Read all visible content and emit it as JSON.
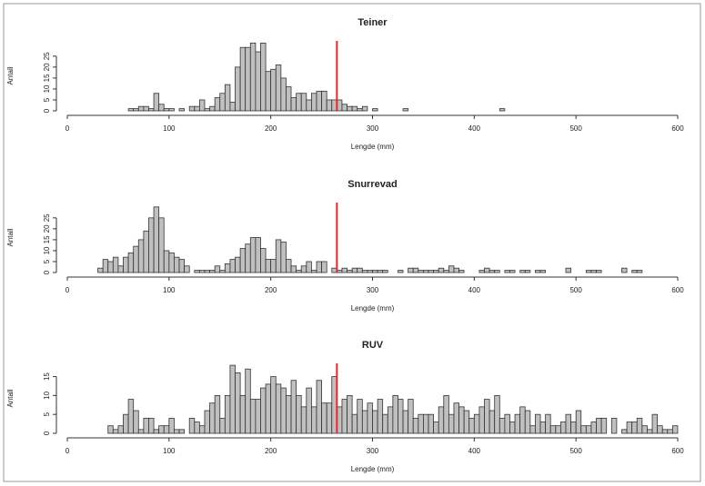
{
  "chart_data": [
    {
      "type": "histogram",
      "title": "Teiner",
      "xlabel": "Lengde (mm)",
      "ylabel": "Antall",
      "bins": [
        30,
        35,
        40,
        45,
        50,
        55,
        60,
        65,
        70,
        75,
        80,
        85,
        90,
        95,
        100,
        105,
        110,
        115,
        120,
        125,
        130,
        135,
        140,
        145,
        150,
        155,
        160,
        165,
        170,
        175,
        180,
        185,
        190,
        195,
        200,
        205,
        210,
        215,
        220,
        225,
        230,
        235,
        240,
        245,
        250,
        255,
        260,
        265,
        270,
        275,
        280,
        285,
        290,
        295,
        300,
        305,
        310,
        315,
        320,
        325,
        330,
        335,
        340,
        345,
        350,
        355,
        360,
        365,
        370,
        375,
        380,
        385,
        390,
        395,
        400,
        405,
        410,
        415,
        420,
        425,
        430,
        435,
        440,
        445,
        450,
        455,
        460,
        465,
        470,
        475,
        480,
        485,
        490,
        495,
        500,
        505,
        510,
        515,
        520,
        525,
        530,
        535,
        540,
        545,
        550,
        555,
        560,
        565,
        570,
        575,
        580,
        585,
        590,
        595,
        600
      ],
      "counts": [
        0,
        0,
        0,
        0,
        0,
        0,
        1,
        1,
        2,
        2,
        1,
        8,
        3,
        1,
        1,
        0,
        1,
        0,
        2,
        2,
        5,
        1,
        2,
        6,
        8,
        12,
        4,
        20,
        29,
        29,
        31,
        27,
        31,
        18,
        19,
        21,
        15,
        11,
        6,
        8,
        8,
        5,
        8,
        9,
        9,
        5,
        5,
        5,
        3,
        2,
        2,
        1,
        2,
        0,
        1,
        0,
        0,
        0,
        0,
        0,
        1,
        0,
        0,
        0,
        0,
        0,
        0,
        0,
        0,
        0,
        0,
        0,
        0,
        0,
        0,
        0,
        0,
        0,
        0,
        1,
        0,
        0,
        0,
        0,
        0,
        0,
        0,
        0,
        0,
        0,
        0,
        0,
        0,
        0,
        0,
        0,
        0,
        0,
        0,
        0,
        0,
        0,
        0,
        0,
        0,
        0,
        0,
        0,
        0,
        0,
        0,
        0,
        0,
        0
      ],
      "color": "#c0c0c0",
      "reference_line": {
        "value": 265,
        "color": "#e8262b"
      },
      "xlim": [
        0,
        600
      ],
      "xticks": [
        0,
        100,
        200,
        300,
        400,
        500,
        600
      ],
      "ylim": [
        0,
        32
      ],
      "yticks": [
        0,
        5,
        10,
        15,
        20,
        25
      ]
    },
    {
      "type": "histogram",
      "title": "Snurrevad",
      "xlabel": "Lengde (mm)",
      "ylabel": "Antall",
      "bins": [
        30,
        35,
        40,
        45,
        50,
        55,
        60,
        65,
        70,
        75,
        80,
        85,
        90,
        95,
        100,
        105,
        110,
        115,
        120,
        125,
        130,
        135,
        140,
        145,
        150,
        155,
        160,
        165,
        170,
        175,
        180,
        185,
        190,
        195,
        200,
        205,
        210,
        215,
        220,
        225,
        230,
        235,
        240,
        245,
        250,
        255,
        260,
        265,
        270,
        275,
        280,
        285,
        290,
        295,
        300,
        305,
        310,
        315,
        320,
        325,
        330,
        335,
        340,
        345,
        350,
        355,
        360,
        365,
        370,
        375,
        380,
        385,
        390,
        395,
        400,
        405,
        410,
        415,
        420,
        425,
        430,
        435,
        440,
        445,
        450,
        455,
        460,
        465,
        470,
        475,
        480,
        485,
        490,
        495,
        500,
        505,
        510,
        515,
        520,
        525,
        530,
        535,
        540,
        545,
        550,
        555,
        560,
        565,
        570,
        575,
        580,
        585,
        590,
        595,
        600
      ],
      "counts": [
        2,
        6,
        5,
        7,
        3,
        7,
        9,
        12,
        15,
        19,
        25,
        30,
        25,
        10,
        9,
        7,
        6,
        3,
        0,
        1,
        1,
        1,
        1,
        3,
        1,
        4,
        6,
        7,
        11,
        13,
        16,
        16,
        11,
        6,
        6,
        15,
        14,
        6,
        3,
        1,
        3,
        5,
        1,
        5,
        5,
        0,
        2,
        1,
        2,
        1,
        2,
        2,
        1,
        1,
        1,
        1,
        1,
        0,
        0,
        1,
        0,
        2,
        2,
        1,
        1,
        1,
        1,
        2,
        1,
        3,
        2,
        1,
        0,
        0,
        0,
        1,
        2,
        1,
        1,
        0,
        1,
        1,
        0,
        1,
        1,
        0,
        1,
        1,
        0,
        0,
        0,
        0,
        2,
        0,
        0,
        0,
        1,
        1,
        1,
        0,
        0,
        0,
        0,
        2,
        0,
        1,
        1,
        0,
        0,
        0,
        0,
        0,
        0,
        0
      ],
      "color": "#c0c0c0",
      "reference_line": {
        "value": 265,
        "color": "#e8262b"
      },
      "xlim": [
        0,
        600
      ],
      "xticks": [
        0,
        100,
        200,
        300,
        400,
        500,
        600
      ],
      "ylim": [
        0,
        32
      ],
      "yticks": [
        0,
        5,
        10,
        15,
        20,
        25
      ]
    },
    {
      "type": "histogram",
      "title": "RUV",
      "xlabel": "Lengde (mm)",
      "ylabel": "Antall",
      "bins": [
        30,
        35,
        40,
        45,
        50,
        55,
        60,
        65,
        70,
        75,
        80,
        85,
        90,
        95,
        100,
        105,
        110,
        115,
        120,
        125,
        130,
        135,
        140,
        145,
        150,
        155,
        160,
        165,
        170,
        175,
        180,
        185,
        190,
        195,
        200,
        205,
        210,
        215,
        220,
        225,
        230,
        235,
        240,
        245,
        250,
        255,
        260,
        265,
        270,
        275,
        280,
        285,
        290,
        295,
        300,
        305,
        310,
        315,
        320,
        325,
        330,
        335,
        340,
        345,
        350,
        355,
        360,
        365,
        370,
        375,
        380,
        385,
        390,
        395,
        400,
        405,
        410,
        415,
        420,
        425,
        430,
        435,
        440,
        445,
        450,
        455,
        460,
        465,
        470,
        475,
        480,
        485,
        490,
        495,
        500,
        505,
        510,
        515,
        520,
        525,
        530,
        535,
        540,
        545,
        550,
        555,
        560,
        565,
        570,
        575,
        580,
        585,
        590,
        595,
        600
      ],
      "counts": [
        0,
        0,
        2,
        1,
        2,
        5,
        9,
        6,
        1,
        4,
        4,
        1,
        2,
        2,
        4,
        1,
        1,
        0,
        4,
        3,
        2,
        6,
        8,
        10,
        4,
        10,
        18,
        16,
        10,
        17,
        9,
        9,
        12,
        13,
        15,
        13,
        12,
        10,
        14,
        10,
        7,
        12,
        7,
        14,
        8,
        8,
        15,
        7,
        9,
        10,
        5,
        9,
        6,
        8,
        6,
        9,
        5,
        7,
        10,
        9,
        6,
        9,
        4,
        5,
        5,
        5,
        3,
        7,
        10,
        5,
        8,
        7,
        6,
        4,
        5,
        7,
        9,
        6,
        10,
        4,
        5,
        3,
        5,
        7,
        6,
        2,
        5,
        3,
        5,
        2,
        2,
        3,
        5,
        3,
        6,
        2,
        2,
        3,
        4,
        4,
        0,
        4,
        0,
        1,
        3,
        3,
        4,
        2,
        1,
        5,
        2,
        1,
        1,
        2
      ],
      "color": "#c0c0c0",
      "reference_line": {
        "value": 265,
        "color": "#e8262b"
      },
      "xlim": [
        0,
        600
      ],
      "xticks": [
        0,
        100,
        200,
        300,
        400,
        500,
        600
      ],
      "ylim": [
        0,
        18.5
      ],
      "yticks": [
        0,
        5,
        10,
        15
      ]
    }
  ]
}
